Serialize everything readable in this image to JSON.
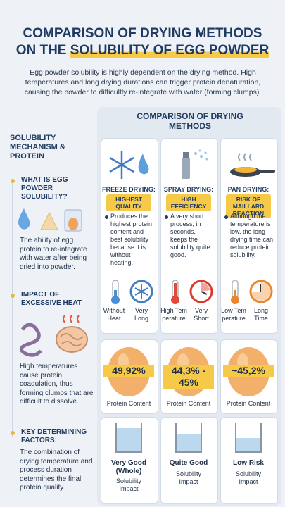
{
  "header": {
    "title_line1": "COMPARISON OF DRYING METHODS",
    "title_line2_prefix": "ON THE",
    "title_line2_highlight": "SOLUBILITY OF EGG POWDER",
    "intro": "Egg powder solubility is highly dependent on the drying method. High temperatures and long drying durations can trigger protein denaturation, causing the powder to difficultly re-integrate with water (forming clumps)."
  },
  "sidebar": {
    "heading": "SOLUBILITY MECHANISM & PROTEIN",
    "sections": [
      {
        "title": "WHAT IS EGG POWDER SOLUBILITY?",
        "text": "The ability of egg protein to re-integrate with water after being dried into powder."
      },
      {
        "title": "IMPACT OF EXCESSIVE HEAT",
        "text": "High temperatures cause protein coagulation, thus forming clumps that are difficult to dissolve."
      },
      {
        "title": "KEY DETERMINING FACTORS:",
        "text": "The combination of drying temperature and process duration determines the final protein quality."
      }
    ]
  },
  "comparison": {
    "heading": "COMPARISON OF DRYING METHODS",
    "methods": [
      {
        "name": "FREEZE DRYING:",
        "tag": "HIGHEST QUALITY",
        "description": "Produces the highest protein content and best solubility because it is without heating.",
        "temperature": "Without Heat",
        "duration": "Very Long",
        "protein": "49,92%",
        "protein_label": "Protein Content",
        "solubility": "Very Good (Whole)",
        "solubility_label": "Solubility Impact"
      },
      {
        "name": "SPRAY DRYING:",
        "tag": "HIGH EFFICIENCY",
        "description": "A very short process, in seconds, keeps the solubility quite good.",
        "temperature": "High Temperature",
        "duration": "Very Short",
        "protein": "44,3% - 45%",
        "protein_label": "Protein Content",
        "solubility": "Quite Good",
        "solubility_label": "Solubility Impact"
      },
      {
        "name": "PAN DRYING:",
        "tag": "RISK OF MAILLARD REACTION",
        "description": "Although the temperature is low, the long drying time can reduce protein solubility.",
        "temperature": "Low Temperature",
        "duration": "Long Time",
        "protein": "~45,2%",
        "protein_label": "Protein Content",
        "solubility": "Low Risk",
        "solubility_label": "Solubility Impact"
      }
    ]
  }
}
